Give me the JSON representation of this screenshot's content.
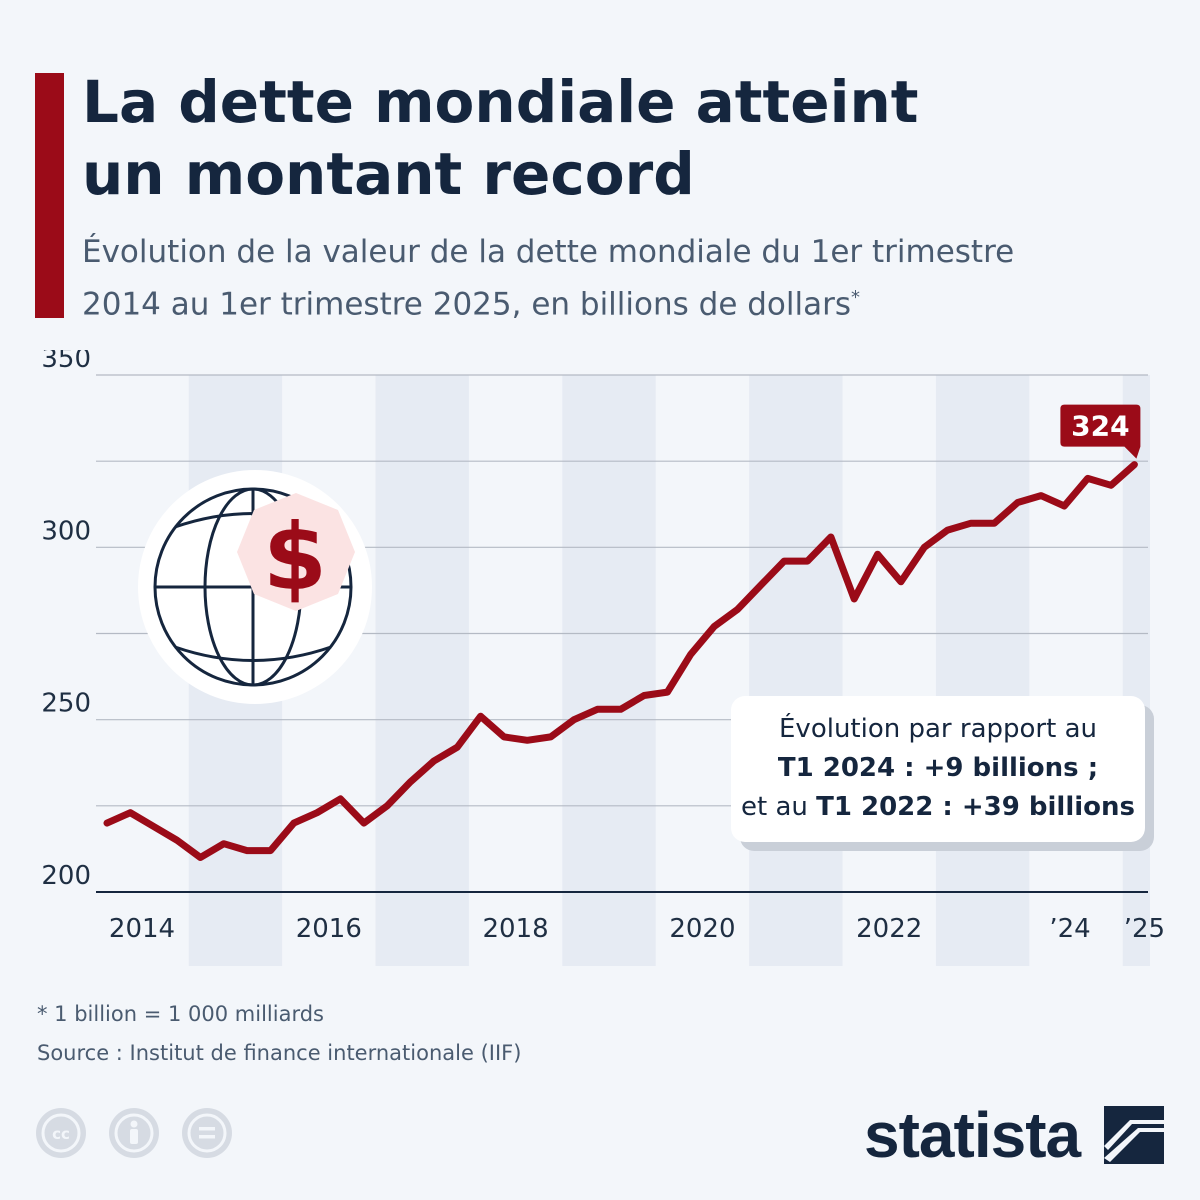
{
  "header": {
    "title_line1": "La dette mondiale atteint",
    "title_line2": "un montant record",
    "subtitle_line1": "Évolution de la valeur de la dette mondiale du 1er trimestre",
    "subtitle_line2": "2014 au 1er trimestre 2025, en billions de dollars",
    "subtitle_mark": "*"
  },
  "colors": {
    "accent": "#9b0b18",
    "navy": "#15263e",
    "band": "#e6ebf3",
    "grid": "#b4bac4",
    "icon_bg": "#ffffff",
    "dollar_bg": "#fbe3e3"
  },
  "chart_data": {
    "type": "line",
    "title": "La dette mondiale atteint un montant record",
    "xlabel": "",
    "ylabel": "billions de dollars",
    "ylim": [
      200,
      350
    ],
    "yticks": [
      200,
      250,
      300,
      350
    ],
    "grid": true,
    "x_start_quarter": "T1 2014",
    "x_end_quarter": "T1 2025",
    "x_tick_labels": [
      "2014",
      "2016",
      "2018",
      "2020",
      "2022",
      "’24",
      "’25"
    ],
    "series": [
      {
        "name": "Dette mondiale",
        "values": [
          220,
          223,
          219,
          215,
          210,
          214,
          212,
          212,
          220,
          223,
          227,
          220,
          225,
          232,
          238,
          242,
          251,
          245,
          244,
          245,
          250,
          253,
          253,
          257,
          258,
          269,
          277,
          282,
          289,
          296,
          296,
          303,
          285,
          298,
          290,
          300,
          305,
          307,
          307,
          313,
          315,
          312,
          320,
          318,
          324
        ]
      }
    ],
    "last_value_label": "324"
  },
  "note": {
    "line1": "Évolution par rapport au",
    "line2_bold": "T1 2024 : +9 billions ;",
    "line3_prefix": "et au ",
    "line3_bold": "T1 2022 : +39 billions"
  },
  "footer": {
    "footnote": "* 1 billion = 1 000 milliards",
    "source": "Source : Institut de finance internationale (IIF)",
    "brand": "statista",
    "license_icons": [
      "cc-icon",
      "by-icon",
      "nd-icon"
    ],
    "license_symbols": [
      "cc",
      "=",
      "i"
    ]
  },
  "illustration": {
    "dollar_symbol": "$"
  }
}
